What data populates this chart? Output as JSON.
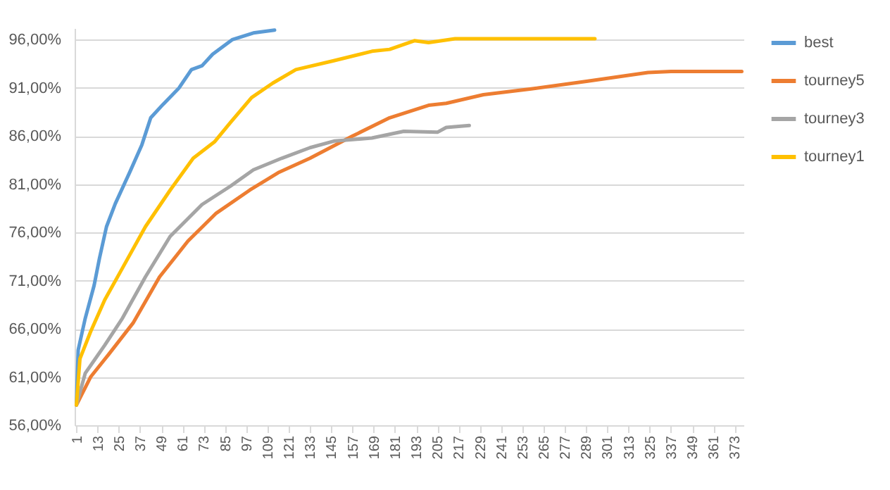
{
  "chart_data": {
    "type": "line",
    "xlim": [
      0,
      378
    ],
    "xticks": [
      1,
      13,
      25,
      37,
      49,
      61,
      73,
      85,
      97,
      109,
      121,
      133,
      145,
      157,
      169,
      181,
      193,
      205,
      217,
      229,
      241,
      253,
      265,
      277,
      289,
      301,
      313,
      325,
      337,
      349,
      361,
      373
    ],
    "ylim": [
      56,
      97.2
    ],
    "yticks": [
      {
        "value": 56,
        "label": "56,00%"
      },
      {
        "value": 61,
        "label": "61,00%"
      },
      {
        "value": 66,
        "label": "66,00%"
      },
      {
        "value": 71,
        "label": "71,00%"
      },
      {
        "value": 76,
        "label": "76,00%"
      },
      {
        "value": 81,
        "label": "81,00%"
      },
      {
        "value": 86,
        "label": "86,00%"
      },
      {
        "value": 91,
        "label": "91,00%"
      },
      {
        "value": 96,
        "label": "96,00%"
      }
    ],
    "grid": "y",
    "legend": "right",
    "series": [
      {
        "name": "best",
        "color": "#5b9bd5",
        "x": [
          1,
          2,
          6,
          11,
          14,
          18,
          23,
          31,
          38,
          43,
          50,
          59,
          66,
          72,
          78,
          89,
          101,
          113
        ],
        "values": [
          58.1,
          63.8,
          67.1,
          70.5,
          73.3,
          76.6,
          79.0,
          82.2,
          85.1,
          87.9,
          89.3,
          91.0,
          92.9,
          93.3,
          94.5,
          96.0,
          96.7,
          97.0
        ]
      },
      {
        "name": "tourney5",
        "color": "#ed7d31",
        "x": [
          1,
          9,
          19,
          33,
          48,
          64,
          80,
          99,
          115,
          133,
          157,
          178,
          200,
          210,
          231,
          258,
          290,
          324,
          337,
          374,
          377
        ],
        "values": [
          58.1,
          61.0,
          63.3,
          66.6,
          71.4,
          75.1,
          78.0,
          80.4,
          82.2,
          83.7,
          86.0,
          87.9,
          89.2,
          89.4,
          90.3,
          90.9,
          91.7,
          92.6,
          92.7,
          92.7,
          92.7
        ]
      },
      {
        "name": "tourney3",
        "color": "#a5a5a5",
        "x": [
          1,
          6,
          17,
          27,
          40,
          54,
          72,
          88,
          101,
          117,
          133,
          147,
          168,
          186,
          205,
          210,
          223
        ],
        "values": [
          58.1,
          61.4,
          64.3,
          67.1,
          71.4,
          75.6,
          78.9,
          80.8,
          82.5,
          83.7,
          84.8,
          85.5,
          85.8,
          86.5,
          86.4,
          86.9,
          87.1
        ]
      },
      {
        "name": "tourney1",
        "color": "#ffc000",
        "x": [
          1,
          3,
          9,
          17,
          27,
          40,
          54,
          67,
          79,
          88,
          100,
          112,
          125,
          146,
          168,
          178,
          192,
          200,
          215,
          254,
          294
        ],
        "values": [
          58.1,
          62.9,
          65.7,
          69.0,
          72.3,
          76.6,
          80.4,
          83.7,
          85.4,
          87.4,
          90.0,
          91.5,
          92.9,
          93.8,
          94.8,
          95.0,
          95.9,
          95.7,
          96.1,
          96.1,
          96.1
        ]
      }
    ]
  }
}
